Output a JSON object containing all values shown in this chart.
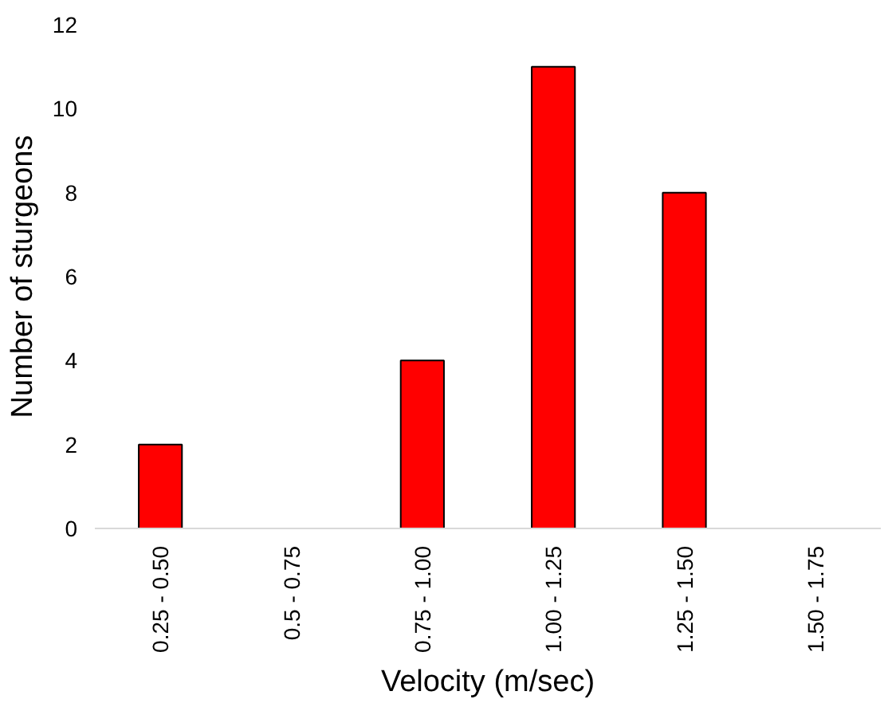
{
  "chart_data": {
    "type": "bar",
    "xlabel": "Velocity (m/sec)",
    "ylabel": "Number of sturgeons",
    "categories": [
      "0.25 - 0.50",
      "0.5 - 0.75",
      "0.75 - 1.00",
      "1.00 - 1.25",
      "1.25 - 1.50",
      "1.50 - 1.75"
    ],
    "values": [
      2,
      0,
      4,
      11,
      8,
      0
    ],
    "color": "#ff0000",
    "ylim": [
      0,
      12
    ],
    "yticks": [
      0,
      2,
      4,
      6,
      8,
      10,
      12
    ],
    "grid": false
  }
}
